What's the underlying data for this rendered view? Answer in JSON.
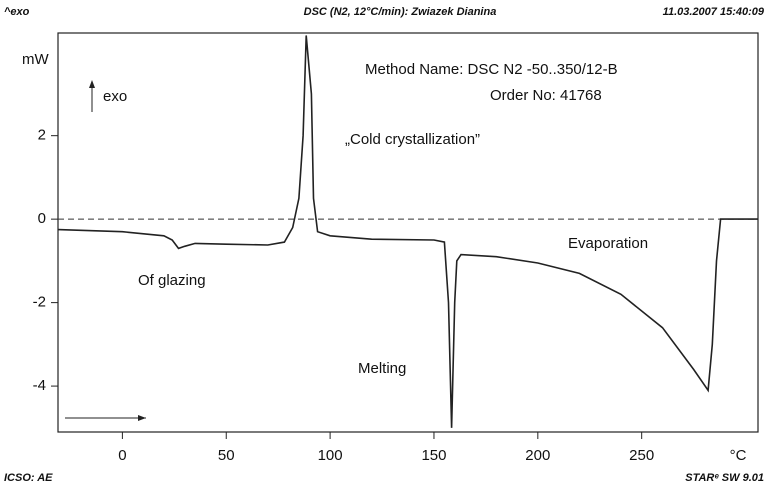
{
  "header": {
    "left": "^exo",
    "title": "DSC (N2, 12°C/min): Zwiazek Dianina",
    "date": "11.03.2007 15:40:09"
  },
  "footer": {
    "left": "ICSO: AE",
    "right": "STARᵉ SW 9.01"
  },
  "chart_data": {
    "type": "line",
    "x_label": "°C",
    "y_label": "mW",
    "annotations": [
      "Method Name: DSC N2 -50..350/12-B",
      "Order No: 41768",
      "„Cold crystallization”",
      "Of glazing",
      "Melting",
      "Evaporation",
      "exo"
    ],
    "x": [
      -31,
      0,
      20,
      24,
      27,
      30,
      35,
      50,
      70,
      78,
      82,
      85,
      87,
      88.5,
      91,
      92,
      94,
      100,
      120,
      150,
      155,
      157,
      158.5,
      160,
      161,
      163,
      180,
      200,
      220,
      240,
      260,
      275,
      282,
      284,
      286,
      288,
      300,
      306
    ],
    "series": [
      {
        "name": "DSC",
        "color": "#222222",
        "values": [
          -0.25,
          -0.3,
          -0.4,
          -0.5,
          -0.7,
          -0.65,
          -0.58,
          -0.6,
          -0.62,
          -0.55,
          -0.2,
          0.5,
          2,
          4.4,
          3,
          0.5,
          -0.3,
          -0.4,
          -0.48,
          -0.5,
          -0.55,
          -2,
          -5,
          -2,
          -1,
          -0.85,
          -0.9,
          -1.05,
          -1.3,
          -1.8,
          -2.6,
          -3.6,
          -4.1,
          -3,
          -1,
          0,
          0,
          0
        ]
      }
    ],
    "xlim": [
      -31,
      306
    ],
    "ylim": [
      -5.1,
      4.46
    ],
    "xticks": [
      0,
      50,
      100,
      150,
      200,
      250
    ],
    "yticks": [
      -4,
      -2,
      0,
      2
    ],
    "zero_line": true
  }
}
